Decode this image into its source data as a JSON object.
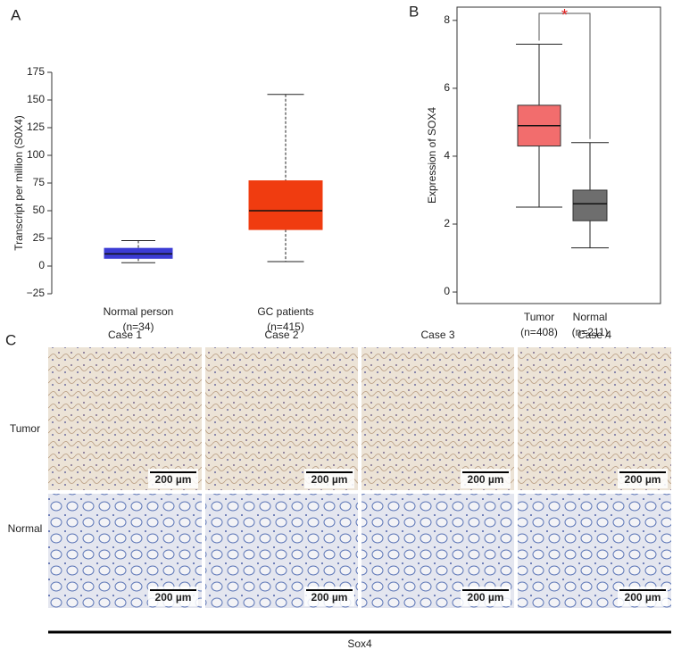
{
  "chart_data": [
    {
      "type": "box",
      "panel_label": "A",
      "ylabel": "Transcript per million (S0X4)",
      "categories": [
        "Normal person",
        "GC patients"
      ],
      "sample_sizes": [
        "(n=34)",
        "(n=415)"
      ],
      "series": [
        {
          "colors": [
            "#3c3cd4",
            "#f03c10"
          ],
          "whisker_low": [
            3,
            4
          ],
          "q1": [
            7,
            33
          ],
          "median": [
            11,
            50
          ],
          "q3": [
            16,
            77
          ],
          "whisker_high": [
            23,
            155
          ]
        }
      ],
      "ylim": [
        -25,
        175
      ],
      "yticks": [
        {
          "value": -25,
          "label": "−25"
        },
        0,
        25,
        50,
        75,
        100,
        125,
        150,
        175
      ],
      "whisker_style": "dashed",
      "frame": false
    },
    {
      "type": "box",
      "panel_label": "B",
      "ylabel": "Expression of SOX4",
      "categories": [
        "Tumor",
        "Normal"
      ],
      "sample_sizes": [
        "(n=408)",
        "(n=211)"
      ],
      "series": [
        {
          "colors": [
            "#f26d6d",
            "#6e6e6e"
          ],
          "whisker_low": [
            2.5,
            1.3
          ],
          "q1": [
            4.3,
            2.1
          ],
          "median": [
            4.9,
            2.6
          ],
          "q3": [
            5.5,
            3.0
          ],
          "whisker_high": [
            7.3,
            4.4
          ]
        }
      ],
      "ylim": [
        -0.34,
        8.39
      ],
      "yticks": [
        0,
        2,
        4,
        6,
        8
      ],
      "whisker_style": "solid",
      "frame": true,
      "significance": "*"
    }
  ],
  "panel_c": {
    "panel_label": "C",
    "columns": [
      "Case 1",
      "Case 2",
      "Case 3",
      "Case 4"
    ],
    "rows": [
      "Tumor",
      "Normal"
    ],
    "scale_bar": "200 µm",
    "stain": "Sox4"
  }
}
